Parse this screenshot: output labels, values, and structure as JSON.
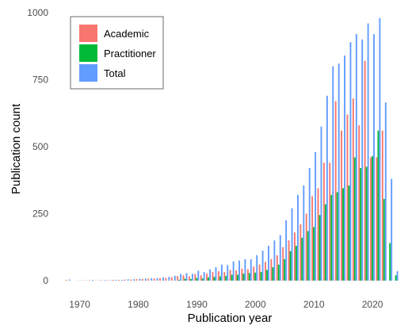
{
  "chart_data": {
    "type": "bar",
    "xlabel": "Publication year",
    "ylabel": "Publication count",
    "xlim": [
      1966,
      2025
    ],
    "ylim": [
      0,
      1000
    ],
    "xticks": [
      1970,
      1980,
      1990,
      2000,
      2010,
      2020
    ],
    "yticks": [
      0,
      250,
      500,
      750,
      1000
    ],
    "grid": false,
    "legend_position": "top-left",
    "x": [
      1968,
      1969,
      1970,
      1971,
      1972,
      1973,
      1974,
      1975,
      1976,
      1977,
      1978,
      1979,
      1980,
      1981,
      1982,
      1983,
      1984,
      1985,
      1986,
      1987,
      1988,
      1989,
      1990,
      1991,
      1992,
      1993,
      1994,
      1995,
      1996,
      1997,
      1998,
      1999,
      2000,
      2001,
      2002,
      2003,
      2004,
      2005,
      2006,
      2007,
      2008,
      2009,
      2010,
      2011,
      2012,
      2013,
      2014,
      2015,
      2016,
      2017,
      2018,
      2019,
      2020,
      2021,
      2022,
      2023,
      2024
    ],
    "series": [
      {
        "name": "Academic",
        "color": "#f8766d",
        "values": [
          3,
          0,
          1,
          1,
          2,
          1,
          2,
          2,
          3,
          3,
          4,
          4,
          6,
          6,
          7,
          8,
          9,
          10,
          13,
          17,
          20,
          16,
          25,
          20,
          26,
          32,
          35,
          32,
          40,
          38,
          45,
          42,
          52,
          60,
          70,
          80,
          95,
          125,
          150,
          180,
          210,
          250,
          315,
          345,
          440,
          440,
          670,
          560,
          620,
          680,
          580,
          820,
          460,
          460,
          560,
          0,
          0
        ]
      },
      {
        "name": "Practitioner",
        "color": "#00ba38",
        "values": [
          0,
          0,
          0,
          0,
          0,
          0,
          0,
          0,
          0,
          0,
          0,
          0,
          0,
          0,
          0,
          0,
          0,
          0,
          0,
          3,
          7,
          6,
          10,
          8,
          12,
          14,
          16,
          18,
          22,
          22,
          26,
          28,
          30,
          32,
          40,
          50,
          60,
          80,
          110,
          130,
          160,
          185,
          200,
          245,
          285,
          320,
          330,
          345,
          355,
          460,
          420,
          425,
          465,
          560,
          305,
          140,
          20
        ]
      },
      {
        "name": "Total",
        "color": "#619cff",
        "values": [
          4,
          0,
          1,
          1,
          3,
          1,
          2,
          2,
          3,
          3,
          5,
          5,
          7,
          8,
          9,
          10,
          12,
          14,
          18,
          25,
          28,
          25,
          37,
          32,
          42,
          50,
          60,
          58,
          72,
          75,
          80,
          80,
          95,
          112,
          130,
          150,
          170,
          225,
          270,
          320,
          355,
          420,
          480,
          575,
          690,
          800,
          810,
          840,
          890,
          920,
          900,
          960,
          920,
          980,
          665,
          380,
          35
        ]
      }
    ]
  }
}
